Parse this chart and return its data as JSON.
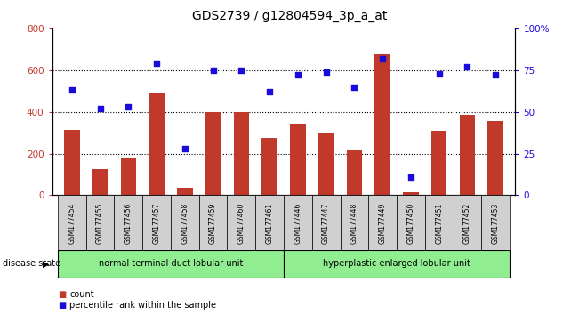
{
  "title": "GDS2739 / g12804594_3p_a_at",
  "categories": [
    "GSM177454",
    "GSM177455",
    "GSM177456",
    "GSM177457",
    "GSM177458",
    "GSM177459",
    "GSM177460",
    "GSM177461",
    "GSM177446",
    "GSM177447",
    "GSM177448",
    "GSM177449",
    "GSM177450",
    "GSM177451",
    "GSM177452",
    "GSM177453"
  ],
  "counts": [
    315,
    125,
    180,
    490,
    35,
    400,
    400,
    275,
    345,
    300,
    215,
    675,
    15,
    310,
    385,
    355
  ],
  "percentiles": [
    63,
    52,
    53,
    79,
    28,
    75,
    75,
    62,
    72,
    74,
    65,
    82,
    11,
    73,
    77,
    72
  ],
  "group1_label": "normal terminal duct lobular unit",
  "group2_label": "hyperplastic enlarged lobular unit",
  "group1_count": 8,
  "group2_count": 8,
  "bar_color": "#c0392b",
  "dot_color": "#1a0bdb",
  "ylim_left": [
    0,
    800
  ],
  "ylim_right": [
    0,
    100
  ],
  "yticks_left": [
    0,
    200,
    400,
    600,
    800
  ],
  "yticks_right": [
    0,
    25,
    50,
    75,
    100
  ],
  "ytick_right_labels": [
    "0",
    "25",
    "50",
    "75",
    "100%"
  ],
  "grid_values": [
    200,
    400,
    600
  ],
  "background_color": "#ffffff",
  "plot_bg": "#ffffff",
  "group1_color": "#90ee90",
  "group2_color": "#90ee90",
  "disease_state_label": "disease state",
  "legend_count_label": "count",
  "legend_percentile_label": "percentile rank within the sample",
  "title_fontsize": 10,
  "tick_fontsize": 7.5,
  "label_fontsize": 7.5,
  "label_box_color": "#d0d0d0",
  "bar_width": 0.55,
  "dot_size": 20
}
